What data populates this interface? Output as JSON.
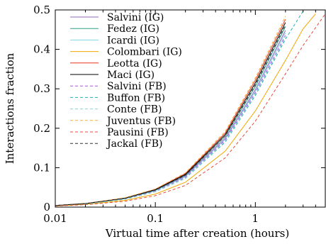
{
  "chart_data": {
    "type": "line",
    "title": "",
    "xlabel": "Virtual time after creation (hours)",
    "ylabel": "Interactions fraction",
    "xscale": "log",
    "xlim": [
      0.01,
      5
    ],
    "ylim": [
      0,
      0.5
    ],
    "xticks": [
      {
        "value": 0.01,
        "label": "0.01"
      },
      {
        "value": 0.1,
        "label": "0.1"
      },
      {
        "value": 1,
        "label": "1"
      }
    ],
    "yticks": [
      {
        "value": 0,
        "label": "0"
      },
      {
        "value": 0.1,
        "label": "0.1"
      },
      {
        "value": 0.2,
        "label": "0.2"
      },
      {
        "value": 0.3,
        "label": "0.3"
      },
      {
        "value": 0.4,
        "label": "0.4"
      },
      {
        "value": 0.5,
        "label": "0.5"
      }
    ],
    "grid": false,
    "legend_position": "top-left",
    "x": [
      0.01,
      0.02,
      0.05,
      0.1,
      0.2,
      0.5,
      1,
      2,
      3,
      4,
      5
    ],
    "series": [
      {
        "name": "Salvini (IG)",
        "color": "#9467bd",
        "dash": "solid",
        "values": [
          0.004,
          0.009,
          0.022,
          0.042,
          0.079,
          0.175,
          0.298,
          0.448,
          null,
          null,
          null
        ]
      },
      {
        "name": "Fedez (IG)",
        "color": "#2ca087",
        "dash": "solid",
        "values": [
          0.004,
          0.009,
          0.022,
          0.043,
          0.081,
          0.18,
          0.306,
          0.458,
          null,
          null,
          null
        ]
      },
      {
        "name": "Icardi (IG)",
        "color": "#7fd8e8",
        "dash": "solid",
        "values": [
          0.004,
          0.008,
          0.021,
          0.041,
          0.077,
          0.172,
          0.294,
          0.442,
          null,
          null,
          null
        ]
      },
      {
        "name": "Colombari (IG)",
        "color": "#f0a800",
        "dash": "solid",
        "values": [
          0.003,
          0.007,
          0.017,
          0.033,
          0.063,
          0.142,
          0.244,
          0.372,
          0.452,
          0.49,
          null
        ]
      },
      {
        "name": "Leotta (IG)",
        "color": "#e8371a",
        "dash": "solid",
        "values": [
          0.004,
          0.009,
          0.023,
          0.045,
          0.085,
          0.188,
          0.322,
          0.476,
          null,
          null,
          null
        ]
      },
      {
        "name": "Maci (IG)",
        "color": "#000000",
        "dash": "solid",
        "values": [
          0.004,
          0.009,
          0.023,
          0.044,
          0.083,
          0.184,
          0.315,
          0.468,
          null,
          null,
          null
        ]
      },
      {
        "name": "Salvini (FB)",
        "color": "#b44fe6",
        "dash": "dashed",
        "values": [
          0.004,
          0.008,
          0.021,
          0.04,
          0.076,
          0.17,
          0.29,
          0.435,
          null,
          null,
          null
        ]
      },
      {
        "name": "Buffon (FB)",
        "color": "#20b2aa",
        "dash": "dashed",
        "values": [
          0.004,
          0.008,
          0.02,
          0.039,
          0.073,
          0.165,
          0.283,
          0.426,
          0.497,
          null,
          null
        ]
      },
      {
        "name": "Conte (FB)",
        "color": "#8fd3d3",
        "dash": "dashed",
        "values": [
          0.004,
          0.008,
          0.02,
          0.039,
          0.074,
          0.167,
          0.286,
          0.43,
          null,
          null,
          null
        ]
      },
      {
        "name": "Juventus (FB)",
        "color": "#f5b041",
        "dash": "dashed",
        "values": [
          0.004,
          0.009,
          0.024,
          0.046,
          0.087,
          0.192,
          0.328,
          0.484,
          null,
          null,
          null
        ]
      },
      {
        "name": "Pausini (FB)",
        "color": "#e74c3c",
        "dash": "dashed",
        "values": [
          0.003,
          0.006,
          0.015,
          0.029,
          0.055,
          0.125,
          0.218,
          0.338,
          0.41,
          0.455,
          0.49
        ]
      },
      {
        "name": "Jackal (FB)",
        "color": "#333333",
        "dash": "dashed",
        "values": [
          0.004,
          0.009,
          0.022,
          0.043,
          0.081,
          0.18,
          0.31,
          0.462,
          null,
          null,
          null
        ]
      }
    ]
  }
}
